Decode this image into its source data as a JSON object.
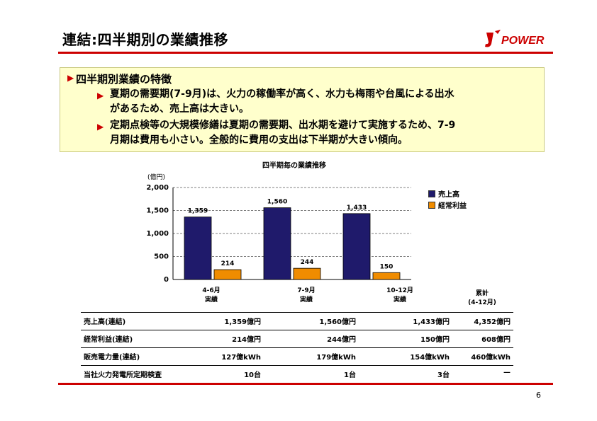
{
  "title": "連結:四半期別の業績推移",
  "logo_text": "POWER",
  "box": {
    "heading": "四半期別業績の特徴",
    "items": [
      {
        "line1": "夏期の需要期(7-9月)は、火力の稼働率が高く、水力も梅雨や台風による出水",
        "line2": "があるため、売上高は大きい。"
      },
      {
        "line1": "定期点検等の大規模修繕は夏期の需要期、出水期を避けて実施するため、7-9",
        "line2": "月期は費用も小さい。全般的に費用の支出は下半期が大きい傾向。"
      }
    ]
  },
  "chart_data": {
    "type": "bar",
    "title": "四半期毎の業績推移",
    "unit_label": "(億円)",
    "categories": [
      "4-6月 実績",
      "7-9月 実績",
      "10-12月 実績"
    ],
    "category_lines": [
      [
        "4-6月",
        "実績"
      ],
      [
        "7-9月",
        "実績"
      ],
      [
        "10-12月",
        "実績"
      ]
    ],
    "series": [
      {
        "name": "売上高",
        "values": [
          1359,
          1560,
          1433
        ],
        "labels": [
          "1,359",
          "1,560",
          "1,433"
        ],
        "color": "#1f1a6b"
      },
      {
        "name": "経常利益",
        "values": [
          214,
          244,
          150
        ],
        "labels": [
          "214",
          "244",
          "150"
        ],
        "color": "#f08c00"
      }
    ],
    "ylim": [
      0,
      2000
    ],
    "yticks": [
      0,
      500,
      1000,
      1500,
      2000
    ],
    "ytick_labels": [
      "0",
      "500",
      "1,000",
      "1,500",
      "2,000"
    ],
    "grid": true,
    "legend_position": "right"
  },
  "cumulative_label_line1": "累計",
  "cumulative_label_line2": "(4-12月)",
  "table": {
    "rows": [
      {
        "label": "売上高(連結)",
        "q1": "1,359億円",
        "q2": "1,560億円",
        "q3": "1,433億円",
        "total": "4,352億円"
      },
      {
        "label": "経常利益(連結)",
        "q1": "214億円",
        "q2": "244億円",
        "q3": "150億円",
        "total": "608億円"
      },
      {
        "label": "販売電力量(連結)",
        "q1": "127億kWh",
        "q2": "179億kWh",
        "q3": "154億kWh",
        "total": "460億kWh"
      },
      {
        "label": "当社火力発電所定期検査",
        "q1": "10台",
        "q2": "1台",
        "q3": "3台",
        "total": "—"
      }
    ]
  },
  "page_number": "6",
  "colors": {
    "accent_red": "#cc0000",
    "box_bg": "#ffffcc",
    "bar1": "#1f1a6b",
    "bar2": "#f08c00"
  }
}
